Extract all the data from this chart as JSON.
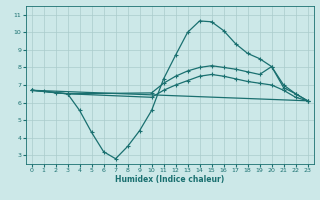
{
  "xlabel": "Humidex (Indice chaleur)",
  "bg_color": "#cce8e8",
  "line_color": "#1a7070",
  "grid_color": "#aacccc",
  "xlim": [
    -0.5,
    23.5
  ],
  "ylim": [
    2.5,
    11.5
  ],
  "xticks": [
    0,
    1,
    2,
    3,
    4,
    5,
    6,
    7,
    8,
    9,
    10,
    11,
    12,
    13,
    14,
    15,
    16,
    17,
    18,
    19,
    20,
    21,
    22,
    23
  ],
  "yticks": [
    3,
    4,
    5,
    6,
    7,
    8,
    9,
    10,
    11
  ],
  "line1_x": [
    0,
    1,
    2,
    3,
    4,
    5,
    6,
    7,
    8,
    9,
    10,
    11,
    12,
    13,
    14,
    15,
    16,
    17,
    18,
    19,
    20,
    21,
    22,
    23
  ],
  "line1_y": [
    6.7,
    6.65,
    6.55,
    6.5,
    5.55,
    4.3,
    3.2,
    2.8,
    3.5,
    4.4,
    5.55,
    7.35,
    8.7,
    10.0,
    10.65,
    10.6,
    10.1,
    9.35,
    8.8,
    8.5,
    8.05,
    6.85,
    6.5,
    6.1
  ],
  "line2_x": [
    0,
    3,
    10,
    11,
    12,
    13,
    14,
    15,
    16,
    17,
    18,
    19,
    20,
    21,
    22,
    23
  ],
  "line2_y": [
    6.7,
    6.5,
    6.55,
    7.1,
    7.5,
    7.8,
    8.0,
    8.1,
    8.0,
    7.9,
    7.75,
    7.6,
    8.05,
    7.0,
    6.5,
    6.1
  ],
  "line3_x": [
    0,
    3,
    10,
    11,
    12,
    13,
    14,
    15,
    16,
    17,
    18,
    19,
    20,
    21,
    22,
    23
  ],
  "line3_y": [
    6.7,
    6.5,
    6.3,
    6.7,
    7.0,
    7.25,
    7.5,
    7.6,
    7.5,
    7.35,
    7.2,
    7.1,
    7.0,
    6.7,
    6.3,
    6.1
  ],
  "line4_x": [
    0,
    23
  ],
  "line4_y": [
    6.7,
    6.1
  ]
}
